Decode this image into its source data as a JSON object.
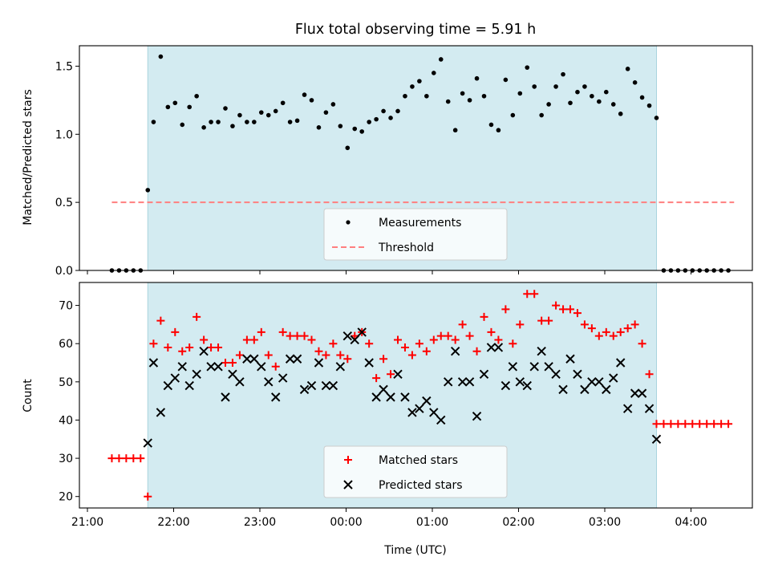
{
  "title": "Flux total observing time = 5.91 h",
  "colors": {
    "shade": "#d3ebf1",
    "shade_edge": "#a9d4de",
    "threshold": "#ff7f7f",
    "matched": "#ff0000",
    "predicted": "#000000",
    "measure": "#000000"
  },
  "chart_data": [
    {
      "type": "scatter",
      "name": "ratio-panel",
      "ylabel": "Matched/Predicted stars",
      "xlabel": "",
      "ylim": [
        0,
        1.65
      ],
      "yticks": [
        "0.0",
        "0.5",
        "1.0",
        "1.5"
      ],
      "ytick_values": [
        0,
        0.5,
        1.0,
        1.5
      ],
      "grid": false,
      "legend_placement": "lower-center",
      "shaded_interval": [
        "21:42",
        "03:36"
      ],
      "threshold": {
        "label": "Threshold",
        "y": 0.5,
        "x_range": [
          "21:17",
          "04:30"
        ]
      },
      "series": [
        {
          "name": "Measurements",
          "times": [
            "21:17",
            "21:22",
            "21:27",
            "21:32",
            "21:37",
            "21:42",
            "21:46",
            "21:51",
            "21:56",
            "22:01",
            "22:06",
            "22:11",
            "22:16",
            "22:21",
            "22:26",
            "22:31",
            "22:36",
            "22:41",
            "22:46",
            "22:51",
            "22:56",
            "23:01",
            "23:06",
            "23:11",
            "23:16",
            "23:21",
            "23:26",
            "23:31",
            "23:36",
            "23:41",
            "23:46",
            "23:51",
            "23:56",
            "00:01",
            "00:06",
            "00:11",
            "00:16",
            "00:21",
            "00:26",
            "00:31",
            "00:36",
            "00:41",
            "00:46",
            "00:51",
            "00:56",
            "01:01",
            "01:06",
            "01:11",
            "01:16",
            "01:21",
            "01:26",
            "01:31",
            "01:36",
            "01:41",
            "01:46",
            "01:51",
            "01:56",
            "02:01",
            "02:06",
            "02:11",
            "02:16",
            "02:21",
            "02:26",
            "02:31",
            "02:36",
            "02:41",
            "02:46",
            "02:51",
            "02:56",
            "03:01",
            "03:06",
            "03:11",
            "03:16",
            "03:21",
            "03:26",
            "03:31",
            "03:36",
            "03:41",
            "03:46",
            "03:51",
            "03:56",
            "04:01",
            "04:06",
            "04:11",
            "04:16",
            "04:21",
            "04:26"
          ],
          "values": [
            0,
            0,
            0,
            0,
            0,
            0.59,
            1.09,
            1.57,
            1.2,
            1.23,
            1.07,
            1.2,
            1.28,
            1.05,
            1.09,
            1.09,
            1.19,
            1.06,
            1.14,
            1.09,
            1.09,
            1.16,
            1.14,
            1.17,
            1.23,
            1.09,
            1.1,
            1.29,
            1.25,
            1.05,
            1.16,
            1.22,
            1.06,
            0.9,
            1.04,
            1.02,
            1.09,
            1.11,
            1.17,
            1.12,
            1.17,
            1.28,
            1.35,
            1.39,
            1.28,
            1.45,
            1.55,
            1.24,
            1.03,
            1.3,
            1.25,
            1.41,
            1.28,
            1.07,
            1.03,
            1.4,
            1.14,
            1.3,
            1.49,
            1.35,
            1.14,
            1.22,
            1.35,
            1.44,
            1.23,
            1.31,
            1.35,
            1.28,
            1.24,
            1.31,
            1.22,
            1.15,
            1.48,
            1.38,
            1.27,
            1.21,
            1.12,
            0,
            0,
            0,
            0,
            0,
            0,
            0,
            0,
            0,
            0
          ]
        }
      ]
    },
    {
      "type": "scatter",
      "name": "count-panel",
      "ylabel": "Count",
      "xlabel": "Time (UTC)",
      "ylim": [
        17,
        76
      ],
      "yticks": [
        "20",
        "30",
        "40",
        "50",
        "60",
        "70"
      ],
      "ytick_values": [
        20,
        30,
        40,
        50,
        60,
        70
      ],
      "xticks": [
        "21:00",
        "22:00",
        "23:00",
        "00:00",
        "01:00",
        "02:00",
        "03:00",
        "04:00"
      ],
      "grid": false,
      "legend_placement": "lower-center",
      "shaded_interval": [
        "21:42",
        "03:36"
      ],
      "series": [
        {
          "name": "Matched stars",
          "times": [
            "21:17",
            "21:22",
            "21:27",
            "21:32",
            "21:37",
            "21:42",
            "21:46",
            "21:51",
            "21:56",
            "22:01",
            "22:06",
            "22:11",
            "22:16",
            "22:21",
            "22:26",
            "22:31",
            "22:36",
            "22:41",
            "22:46",
            "22:51",
            "22:56",
            "23:01",
            "23:06",
            "23:11",
            "23:16",
            "23:21",
            "23:26",
            "23:31",
            "23:36",
            "23:41",
            "23:46",
            "23:51",
            "23:56",
            "00:01",
            "00:06",
            "00:11",
            "00:16",
            "00:21",
            "00:26",
            "00:31",
            "00:36",
            "00:41",
            "00:46",
            "00:51",
            "00:56",
            "01:01",
            "01:06",
            "01:11",
            "01:16",
            "01:21",
            "01:26",
            "01:31",
            "01:36",
            "01:41",
            "01:46",
            "01:51",
            "01:56",
            "02:01",
            "02:06",
            "02:11",
            "02:16",
            "02:21",
            "02:26",
            "02:31",
            "02:36",
            "02:41",
            "02:46",
            "02:51",
            "02:56",
            "03:01",
            "03:06",
            "03:11",
            "03:16",
            "03:21",
            "03:26",
            "03:31",
            "03:36",
            "03:41",
            "03:46",
            "03:51",
            "03:56",
            "04:01",
            "04:06",
            "04:11",
            "04:16",
            "04:21",
            "04:26"
          ],
          "values": [
            30,
            30,
            30,
            30,
            30,
            20,
            60,
            66,
            59,
            63,
            58,
            59,
            67,
            61,
            59,
            59,
            55,
            55,
            57,
            61,
            61,
            63,
            57,
            54,
            63,
            62,
            62,
            62,
            61,
            58,
            57,
            60,
            57,
            56,
            62,
            63,
            60,
            51,
            56,
            52,
            61,
            59,
            57,
            60,
            58,
            61,
            62,
            62,
            61,
            65,
            62,
            58,
            67,
            63,
            61,
            69,
            60,
            65,
            73,
            73,
            66,
            66,
            70,
            69,
            69,
            68,
            65,
            64,
            62,
            63,
            62,
            63,
            64,
            65,
            60,
            52,
            39,
            39,
            39,
            39,
            39,
            39,
            39,
            39,
            39,
            39,
            39
          ]
        },
        {
          "name": "Predicted stars",
          "times": [
            "21:42",
            "21:46",
            "21:51",
            "21:56",
            "22:01",
            "22:06",
            "22:11",
            "22:16",
            "22:21",
            "22:26",
            "22:31",
            "22:36",
            "22:41",
            "22:46",
            "22:51",
            "22:56",
            "23:01",
            "23:06",
            "23:11",
            "23:16",
            "23:21",
            "23:26",
            "23:31",
            "23:36",
            "23:41",
            "23:46",
            "23:51",
            "23:56",
            "00:01",
            "00:06",
            "00:11",
            "00:16",
            "00:21",
            "00:26",
            "00:31",
            "00:36",
            "00:41",
            "00:46",
            "00:51",
            "00:56",
            "01:01",
            "01:06",
            "01:11",
            "01:16",
            "01:21",
            "01:26",
            "01:31",
            "01:36",
            "01:41",
            "01:46",
            "01:51",
            "01:56",
            "02:01",
            "02:06",
            "02:11",
            "02:16",
            "02:21",
            "02:26",
            "02:31",
            "02:36",
            "02:41",
            "02:46",
            "02:51",
            "02:56",
            "03:01",
            "03:06",
            "03:11",
            "03:16",
            "03:21",
            "03:26",
            "03:31",
            "03:36"
          ],
          "values": [
            34,
            55,
            42,
            49,
            51,
            54,
            49,
            52,
            58,
            54,
            54,
            46,
            52,
            50,
            56,
            56,
            54,
            50,
            46,
            51,
            56,
            56,
            48,
            49,
            55,
            49,
            49,
            54,
            62,
            61,
            63,
            55,
            46,
            48,
            46,
            52,
            46,
            42,
            43,
            45,
            42,
            40,
            50,
            58,
            50,
            50,
            41,
            52,
            59,
            59,
            49,
            54,
            50,
            49,
            54,
            58,
            54,
            52,
            48,
            56,
            52,
            48,
            50,
            50,
            48,
            51,
            55,
            43,
            47,
            47,
            43,
            35
          ]
        }
      ]
    }
  ]
}
